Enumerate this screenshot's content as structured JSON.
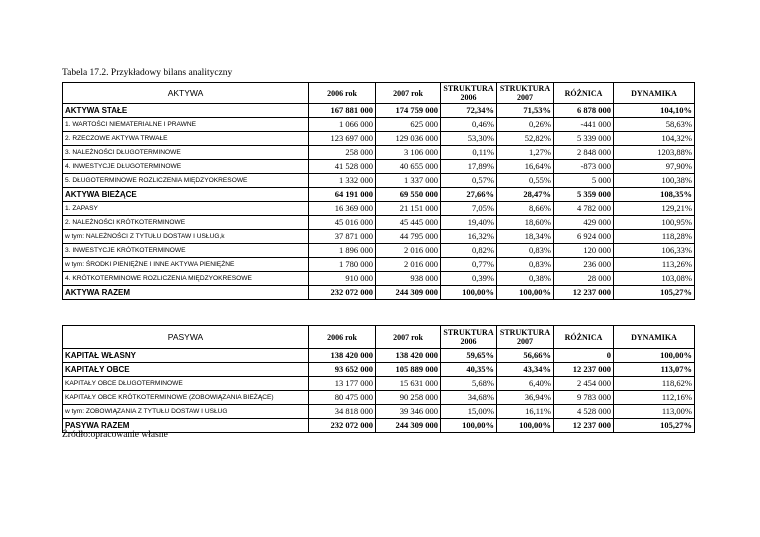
{
  "caption": "Tabela 17.2. Przykładowy bilans analityczny",
  "tables": [
    {
      "header": [
        "AKTYWA",
        "2006 rok",
        "2007 rok",
        "STRUKTURA\n2006",
        "STRUKTURA\n2007",
        "RÓŻNICA",
        "DYNAMIKA"
      ],
      "rows": [
        {
          "bold": true,
          "cells": [
            "AKTYWA STAŁE",
            "167 881 000",
            "174 759 000",
            "72,34%",
            "71,53%",
            "6 878 000",
            "104,10%"
          ]
        },
        {
          "bold": false,
          "cells": [
            "1. WARTOŚCI NIEMATERIALNE I PRAWNE",
            "1 066 000",
            "625 000",
            "0,46%",
            "0,26%",
            "-441 000",
            "58,63%"
          ]
        },
        {
          "bold": false,
          "cells": [
            "2. RZECZOWE AKTYWA TRWAŁE",
            "123 697 000",
            "129 036 000",
            "53,30%",
            "52,82%",
            "5 339 000",
            "104,32%"
          ]
        },
        {
          "bold": false,
          "cells": [
            "3. NALEŻNOŚCI DŁUGOTERMINOWE",
            "258 000",
            "3 106 000",
            "0,11%",
            "1,27%",
            "2 848 000",
            "1203,88%"
          ]
        },
        {
          "bold": false,
          "cells": [
            "4. INWESTYCJE DŁUGOTERMINOWE",
            "41 528 000",
            "40 655 000",
            "17,89%",
            "16,64%",
            "-873 000",
            "97,90%"
          ]
        },
        {
          "bold": false,
          "cells": [
            "5. DŁUGOTERMINOWE ROZLICZENIA MIĘDZYOKRESOWE",
            "1 332 000",
            "1 337 000",
            "0,57%",
            "0,55%",
            "5 000",
            "100,38%"
          ]
        },
        {
          "bold": true,
          "cells": [
            "AKTYWA BIEŻĄCE",
            "64 191 000",
            "69 550 000",
            "27,66%",
            "28,47%",
            "5 359 000",
            "108,35%"
          ]
        },
        {
          "bold": false,
          "cells": [
            "1. ZAPASY",
            "16 369 000",
            "21 151 000",
            "7,05%",
            "8,66%",
            "4 782 000",
            "129,21%"
          ]
        },
        {
          "bold": false,
          "cells": [
            "2. NALEŻNOŚCI KRÓTKOTERMINOWE",
            "45 016 000",
            "45 445 000",
            "19,40%",
            "18,60%",
            "429 000",
            "100,95%"
          ]
        },
        {
          "bold": false,
          "cells": [
            "w tym: NALEŻNOŚCI Z TYTUŁU DOSTAW I USŁUG,k",
            "37 871 000",
            "44 795 000",
            "16,32%",
            "18,34%",
            "6 924 000",
            "118,28%"
          ]
        },
        {
          "bold": false,
          "cells": [
            "3. INWESTYCJE KRÓTKOTERMINOWE",
            "1 896 000",
            "2 016 000",
            "0,82%",
            "0,83%",
            "120 000",
            "106,33%"
          ]
        },
        {
          "bold": false,
          "cells": [
            "w tym: ŚRODKI PIENIĘŻNE I INNE AKTYWA PIENIĘŻNE",
            "1 780 000",
            "2 016 000",
            "0,77%",
            "0,83%",
            "236 000",
            "113,26%"
          ]
        },
        {
          "bold": false,
          "cells": [
            "4. KRÓTKOTERMINOWE ROZLICZENIA MIĘDZYOKRESOWE",
            "910 000",
            "938 000",
            "0,39%",
            "0,38%",
            "28 000",
            "103,08%"
          ]
        },
        {
          "bold": true,
          "cells": [
            "AKTYWA RAZEM",
            "232 072 000",
            "244 309 000",
            "100,00%",
            "100,00%",
            "12 237 000",
            "105,27%"
          ]
        }
      ]
    },
    {
      "header": [
        "PASYWA",
        "2006 rok",
        "2007 rok",
        "STRUKTURA\n2006",
        "STRUKTURA\n2007",
        "RÓŻNICA",
        "DYNAMIKA"
      ],
      "rows": [
        {
          "bold": true,
          "cells": [
            "KAPITAŁ WŁASNY",
            "138 420 000",
            "138 420 000",
            "59,65%",
            "56,66%",
            "0",
            "100,00%"
          ]
        },
        {
          "bold": true,
          "cells": [
            "KAPITAŁY OBCE",
            "93 652 000",
            "105 889 000",
            "40,35%",
            "43,34%",
            "12 237 000",
            "113,07%"
          ]
        },
        {
          "bold": false,
          "cells": [
            "KAPITAŁY OBCE DŁUGOTERMINOWE",
            "13 177 000",
            "15 631 000",
            "5,68%",
            "6,40%",
            "2 454 000",
            "118,62%"
          ]
        },
        {
          "bold": false,
          "cells": [
            "KAPITAŁY OBCE KRÓTKOTERMINOWE (ZOBOWIĄZANIA BIEŻĄCE)",
            "80 475 000",
            "90 258 000",
            "34,68%",
            "36,94%",
            "9 783 000",
            "112,16%"
          ]
        },
        {
          "bold": false,
          "cells": [
            "w tym: ZOBOWIĄZANIA Z TYTUŁU DOSTAW I USŁUG",
            "34 818 000",
            "39 346 000",
            "15,00%",
            "16,11%",
            "4 528 000",
            "113,00%"
          ]
        },
        {
          "bold": true,
          "cells": [
            "PASYWA RAZEM",
            "232 072 000",
            "244 309 000",
            "100,00%",
            "100,00%",
            "12 237 000",
            "105,27%"
          ]
        }
      ]
    }
  ],
  "source": "Źródło:opracowanie własne"
}
